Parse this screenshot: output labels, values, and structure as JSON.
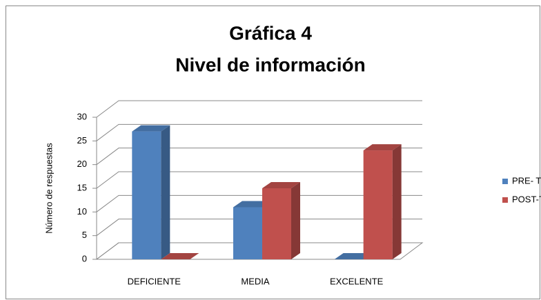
{
  "chart_data": {
    "type": "bar3d",
    "title": [
      "Gráfica 4",
      "Nivel de información"
    ],
    "y_label": "Número de respuestas",
    "categories": [
      "DEFICIENTE",
      "MEDIA",
      "EXCELENTE"
    ],
    "series": [
      {
        "name": "PRE- TEST",
        "color": "#4f81bd",
        "values": [
          27,
          11,
          0
        ]
      },
      {
        "name": "POST-TES",
        "color": "#c0504d",
        "values": [
          0,
          15,
          23
        ]
      }
    ],
    "ylim": [
      0,
      30
    ],
    "yticks": [
      0,
      5,
      10,
      15,
      20,
      25,
      30
    ],
    "grid": true,
    "legend": "right"
  }
}
